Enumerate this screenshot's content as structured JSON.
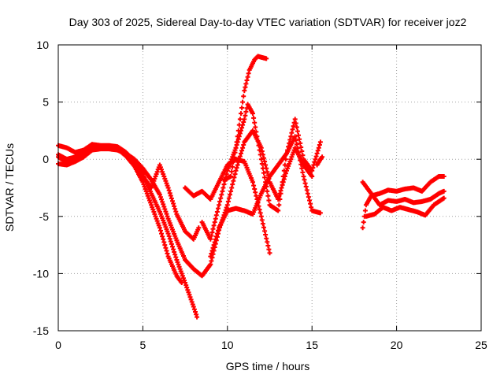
{
  "chart_data": {
    "type": "scatter",
    "title": "Day 303 of 2025, Sidereal Day-to-day VTEC variation (SDTVAR) for receiver joz2",
    "xlabel": "GPS time / hours",
    "ylabel": "SDTVAR / TECUs",
    "xlim": [
      0,
      25
    ],
    "ylim": [
      -15,
      10
    ],
    "xticks": [
      "0",
      "5",
      "10",
      "15",
      "20",
      "25"
    ],
    "yticks": [
      "10",
      "5",
      "0",
      "-5",
      "-10",
      "-15"
    ],
    "grid": true,
    "marker": "+",
    "colors": {
      "series": "#ff0000",
      "grid": "#a0a0a0",
      "frame": "#000000"
    },
    "series": [
      {
        "name": "track-1",
        "points": [
          [
            0,
            1.2
          ],
          [
            0.5,
            1.0
          ],
          [
            1,
            0.6
          ],
          [
            1.5,
            0.8
          ],
          [
            2,
            1.3
          ],
          [
            2.5,
            1.2
          ],
          [
            3,
            1.2
          ],
          [
            3.5,
            1.1
          ],
          [
            4,
            0.6
          ],
          [
            4.5,
            -0.2
          ],
          [
            5,
            -1.3
          ],
          [
            5.5,
            -3.0
          ],
          [
            6,
            -4.6
          ],
          [
            6.5,
            -6.5
          ],
          [
            7,
            -8.8
          ],
          [
            7.5,
            -10.8
          ],
          [
            8,
            -12.9
          ],
          [
            8.2,
            -13.8
          ]
        ]
      },
      {
        "name": "track-2",
        "points": [
          [
            0,
            0.4
          ],
          [
            0.5,
            0.0
          ],
          [
            1,
            0.2
          ],
          [
            1.5,
            0.4
          ],
          [
            2,
            0.9
          ],
          [
            2.5,
            1.0
          ],
          [
            3,
            1.0
          ],
          [
            3.5,
            0.9
          ],
          [
            4,
            0.3
          ],
          [
            4.5,
            -0.6
          ],
          [
            5,
            -2.0
          ],
          [
            5.5,
            -4.0
          ],
          [
            6,
            -6.0
          ],
          [
            6.5,
            -8.5
          ],
          [
            7,
            -10.2
          ],
          [
            7.3,
            -10.8
          ]
        ]
      },
      {
        "name": "track-3",
        "points": [
          [
            0,
            -0.4
          ],
          [
            0.5,
            -0.5
          ],
          [
            1,
            -0.2
          ],
          [
            1.5,
            0.2
          ],
          [
            2,
            0.8
          ],
          [
            2.5,
            0.9
          ],
          [
            3,
            0.9
          ],
          [
            3.5,
            0.8
          ],
          [
            4,
            0.5
          ],
          [
            4.5,
            0.0
          ],
          [
            5,
            -0.8
          ],
          [
            5.5,
            -1.8
          ],
          [
            6,
            -3.1
          ],
          [
            6.5,
            -5.2
          ],
          [
            7,
            -7.1
          ],
          [
            7.5,
            -8.8
          ],
          [
            8,
            -9.6
          ],
          [
            8.5,
            -10.2
          ],
          [
            9,
            -9.2
          ],
          [
            9.5,
            -6.2
          ],
          [
            10,
            -4.0
          ],
          [
            10.5,
            -1.0
          ],
          [
            11,
            1.5
          ],
          [
            11.5,
            2.5
          ],
          [
            12,
            1.0
          ],
          [
            12.5,
            -2.0
          ],
          [
            13,
            -3.5
          ],
          [
            13.5,
            -1.0
          ],
          [
            14,
            1.0
          ],
          [
            14.5,
            -0.5
          ],
          [
            15,
            -1.5
          ]
        ]
      },
      {
        "name": "track-4",
        "points": [
          [
            0,
            0.2
          ],
          [
            0.5,
            -0.3
          ],
          [
            1,
            0.1
          ],
          [
            1.5,
            0.5
          ],
          [
            2,
            1.0
          ],
          [
            2.5,
            1.1
          ],
          [
            3,
            1.1
          ],
          [
            3.5,
            0.9
          ],
          [
            4,
            0.3
          ],
          [
            4.5,
            -0.5
          ],
          [
            5,
            -1.5
          ],
          [
            5.5,
            -2.5
          ],
          [
            6,
            -0.5
          ],
          [
            6.5,
            -2.5
          ],
          [
            7,
            -4.8
          ],
          [
            7.5,
            -6.3
          ],
          [
            8,
            -7.0
          ],
          [
            8.3,
            -6.0
          ]
        ]
      },
      {
        "name": "track-5",
        "points": [
          [
            7.5,
            -2.5
          ],
          [
            8,
            -3.2
          ],
          [
            8.5,
            -2.8
          ],
          [
            9,
            -3.5
          ],
          [
            9.5,
            -2.0
          ],
          [
            10,
            -0.5
          ],
          [
            10.5,
            0.0
          ],
          [
            11,
            -0.2
          ],
          [
            11.5,
            -2.0
          ],
          [
            12,
            -5.0
          ],
          [
            12.5,
            -8.2
          ]
        ]
      },
      {
        "name": "track-6",
        "points": [
          [
            9,
            -8.5
          ],
          [
            9.5,
            -6.0
          ],
          [
            10,
            -4.5
          ],
          [
            10.5,
            -4.3
          ],
          [
            11,
            -4.5
          ],
          [
            11.5,
            -4.8
          ],
          [
            12,
            -3.0
          ],
          [
            12.5,
            -1.5
          ],
          [
            13,
            -0.5
          ],
          [
            13.5,
            0.5
          ],
          [
            14,
            2.0
          ],
          [
            14.5,
            -1.5
          ],
          [
            15,
            -4.5
          ],
          [
            15.5,
            -4.7
          ]
        ]
      },
      {
        "name": "track-7",
        "points": [
          [
            8.5,
            -5.5
          ],
          [
            9,
            -7.0
          ],
          [
            9.5,
            -4.0
          ],
          [
            10,
            -1.0
          ],
          [
            10.5,
            1.0
          ],
          [
            11,
            3.5
          ],
          [
            11.2,
            4.8
          ],
          [
            11.5,
            4.0
          ],
          [
            12,
            0.0
          ],
          [
            12.5,
            -4.0
          ],
          [
            13,
            -4.5
          ],
          [
            13.5,
            0.5
          ],
          [
            14,
            3.5
          ],
          [
            14.5,
            0.0
          ],
          [
            15,
            -1.0
          ],
          [
            15.5,
            1.5
          ]
        ]
      },
      {
        "name": "track-8",
        "points": [
          [
            9.8,
            -1.8
          ],
          [
            10.2,
            -1.5
          ],
          [
            10.5,
            1.0
          ],
          [
            10.8,
            4.0
          ],
          [
            11,
            6.0
          ],
          [
            11.3,
            7.8
          ],
          [
            11.6,
            8.7
          ],
          [
            11.8,
            9.0
          ],
          [
            12.3,
            8.8
          ]
        ]
      },
      {
        "name": "track-9",
        "points": [
          [
            15.3,
            -0.5
          ],
          [
            15.5,
            0.0
          ],
          [
            15.6,
            0.2
          ]
        ]
      },
      {
        "name": "track-10",
        "points": [
          [
            18,
            -6.0
          ],
          [
            18.2,
            -4.0
          ],
          [
            18.5,
            -3.2
          ],
          [
            19,
            -3.0
          ],
          [
            19.5,
            -2.7
          ],
          [
            20,
            -2.8
          ],
          [
            20.5,
            -2.6
          ],
          [
            21,
            -2.5
          ],
          [
            21.5,
            -2.8
          ],
          [
            22,
            -2.0
          ],
          [
            22.5,
            -1.5
          ],
          [
            22.8,
            -1.5
          ]
        ]
      },
      {
        "name": "track-11",
        "points": [
          [
            18,
            -2.0
          ],
          [
            18.5,
            -3.0
          ],
          [
            19,
            -4.0
          ],
          [
            19.5,
            -3.6
          ],
          [
            20,
            -3.7
          ],
          [
            20.5,
            -3.5
          ],
          [
            21,
            -3.8
          ],
          [
            21.5,
            -3.7
          ],
          [
            22,
            -3.5
          ],
          [
            22.5,
            -3.0
          ],
          [
            22.8,
            -2.8
          ]
        ]
      },
      {
        "name": "track-12",
        "points": [
          [
            18.2,
            -5.0
          ],
          [
            18.7,
            -4.8
          ],
          [
            19.2,
            -4.2
          ],
          [
            19.7,
            -4.5
          ],
          [
            20.2,
            -4.2
          ],
          [
            20.7,
            -4.4
          ],
          [
            21.2,
            -4.6
          ],
          [
            21.7,
            -4.9
          ],
          [
            22.2,
            -4.0
          ],
          [
            22.7,
            -3.5
          ],
          [
            22.8,
            -3.4
          ]
        ]
      }
    ]
  }
}
